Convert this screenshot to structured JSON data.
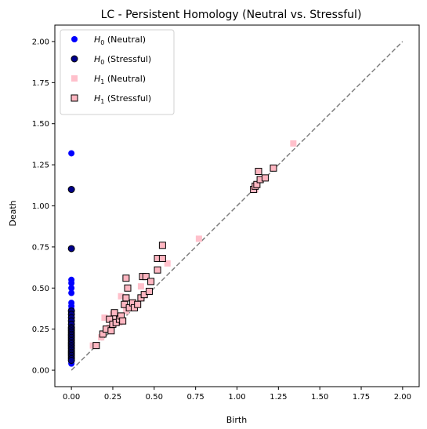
{
  "chart_data": {
    "type": "scatter",
    "title": "LC - Persistent Homology (Neutral vs. Stressful)",
    "xlabel": "Birth",
    "ylabel": "Death",
    "xlim": [
      -0.1,
      2.1
    ],
    "ylim": [
      -0.1,
      2.1
    ],
    "xticks": [
      0.0,
      0.25,
      0.5,
      0.75,
      1.0,
      1.25,
      1.5,
      1.75,
      2.0
    ],
    "yticks": [
      0.0,
      0.25,
      0.5,
      0.75,
      1.0,
      1.25,
      1.5,
      1.75,
      2.0
    ],
    "xtick_labels": [
      "0.00",
      "0.25",
      "0.50",
      "0.75",
      "1.00",
      "1.25",
      "1.50",
      "1.75",
      "2.00"
    ],
    "ytick_labels": [
      "0.00",
      "0.25",
      "0.50",
      "0.75",
      "1.00",
      "1.25",
      "1.50",
      "1.75",
      "2.00"
    ],
    "grid": false,
    "legend_position": "top-left",
    "diagonal": {
      "from": [
        0,
        0
      ],
      "to": [
        2,
        2
      ],
      "style": "dashed",
      "color": "#808080"
    },
    "series": [
      {
        "name": "H₀ (Neutral)",
        "legend_main": "H",
        "legend_sub": "0",
        "legend_rest": " (Neutral)",
        "marker": "circle",
        "color": "#0000ff",
        "edge": "none",
        "x": [
          0,
          0,
          0,
          0,
          0,
          0,
          0,
          0,
          0,
          0,
          0,
          0,
          0,
          0,
          0,
          0,
          0,
          0,
          0,
          0,
          0,
          0,
          0,
          0,
          0,
          0,
          0,
          0,
          0,
          0,
          0,
          0,
          0,
          0,
          0,
          0,
          0
        ],
        "y": [
          1.32,
          1.1,
          0.74,
          0.55,
          0.53,
          0.5,
          0.47,
          0.41,
          0.39,
          0.37,
          0.35,
          0.33,
          0.31,
          0.29,
          0.27,
          0.25,
          0.24,
          0.23,
          0.22,
          0.21,
          0.2,
          0.19,
          0.18,
          0.17,
          0.16,
          0.15,
          0.14,
          0.13,
          0.12,
          0.11,
          0.1,
          0.09,
          0.08,
          0.07,
          0.06,
          0.05,
          0.04
        ]
      },
      {
        "name": "H₀ (Stressful)",
        "legend_main": "H",
        "legend_sub": "0",
        "legend_rest": " (Stressful)",
        "marker": "circle",
        "color": "#00008b",
        "edge": "#000000",
        "x": [
          0,
          0,
          0,
          0,
          0,
          0,
          0,
          0,
          0,
          0,
          0,
          0,
          0,
          0,
          0,
          0,
          0,
          0,
          0,
          0,
          0,
          0,
          0,
          0,
          0,
          0,
          0,
          0
        ],
        "y": [
          1.1,
          0.74,
          0.36,
          0.34,
          0.32,
          0.3,
          0.28,
          0.26,
          0.25,
          0.24,
          0.23,
          0.22,
          0.21,
          0.2,
          0.19,
          0.18,
          0.17,
          0.16,
          0.15,
          0.14,
          0.13,
          0.12,
          0.11,
          0.1,
          0.09,
          0.08,
          0.07,
          0.06
        ]
      },
      {
        "name": "H₁ (Neutral)",
        "legend_main": "H",
        "legend_sub": "1",
        "legend_rest": " (Neutral)",
        "marker": "square",
        "color": "#ffc0cb",
        "edge": "none",
        "x": [
          0.13,
          0.18,
          0.2,
          0.23,
          0.27,
          0.3,
          0.33,
          0.38,
          0.42,
          0.47,
          0.58,
          0.77,
          1.34,
          1.11,
          0.25,
          0.29
        ],
        "y": [
          0.15,
          0.2,
          0.32,
          0.26,
          0.3,
          0.45,
          0.36,
          0.4,
          0.51,
          0.48,
          0.65,
          0.8,
          1.38,
          1.1,
          0.34,
          0.29
        ]
      },
      {
        "name": "H₁ (Stressful)",
        "legend_main": "H",
        "legend_sub": "1",
        "legend_rest": " (Stressful)",
        "marker": "square",
        "color": "#ffb6c1",
        "edge": "#000000",
        "x": [
          0.15,
          0.19,
          0.21,
          0.23,
          0.24,
          0.25,
          0.26,
          0.27,
          0.29,
          0.3,
          0.31,
          0.32,
          0.33,
          0.33,
          0.34,
          0.35,
          0.37,
          0.38,
          0.4,
          0.42,
          0.43,
          0.44,
          0.45,
          0.47,
          0.48,
          0.52,
          0.52,
          0.55,
          0.55,
          1.1,
          1.11,
          1.12,
          1.13,
          1.14,
          1.17,
          1.22
        ],
        "y": [
          0.15,
          0.22,
          0.25,
          0.31,
          0.24,
          0.28,
          0.35,
          0.29,
          0.31,
          0.33,
          0.3,
          0.4,
          0.56,
          0.44,
          0.5,
          0.38,
          0.41,
          0.38,
          0.4,
          0.44,
          0.57,
          0.46,
          0.57,
          0.48,
          0.54,
          0.61,
          0.68,
          0.68,
          0.76,
          1.1,
          1.12,
          1.13,
          1.21,
          1.16,
          1.17,
          1.23
        ]
      }
    ]
  }
}
